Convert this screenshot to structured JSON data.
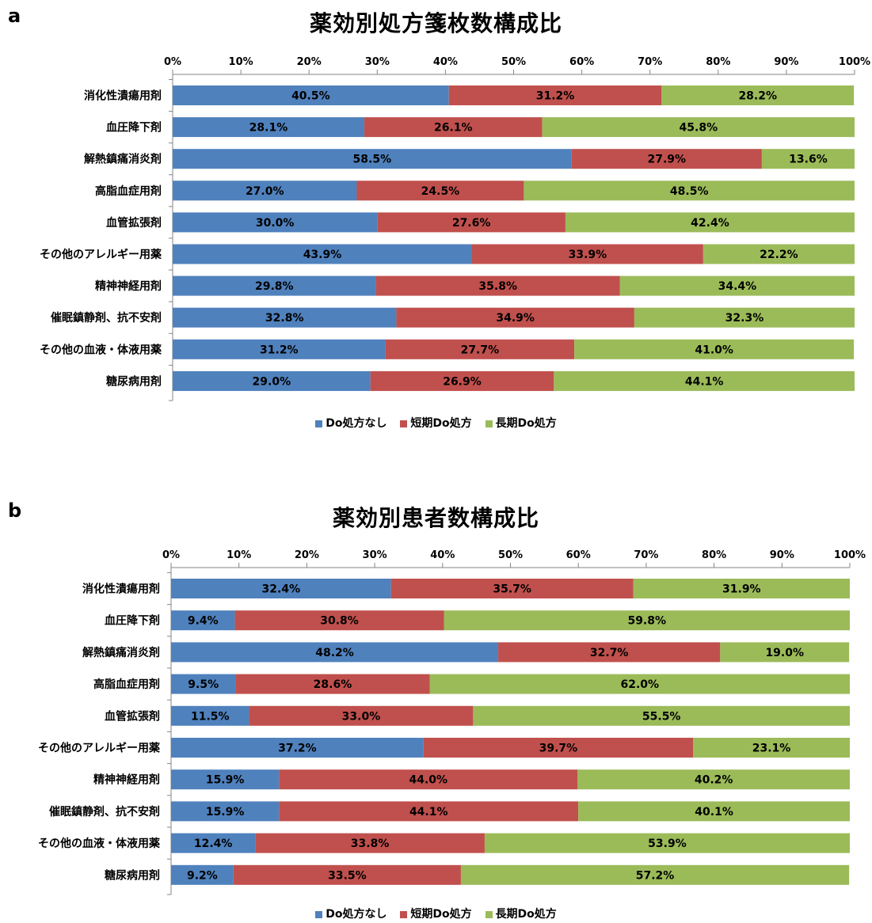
{
  "legend": {
    "series": [
      {
        "label": "Do処方なし",
        "color": "#4f81bd"
      },
      {
        "label": "短期Do処方",
        "color": "#c0504d"
      },
      {
        "label": "長期Do処方",
        "color": "#9bbb59"
      }
    ]
  },
  "chart_data": [
    {
      "panel_label": "a",
      "title": "薬効別処方箋枚数構成比",
      "type": "bar",
      "orientation": "horizontal",
      "stacked": "percent",
      "xlim": [
        0,
        100
      ],
      "x_ticks": [
        "0%",
        "10%",
        "20%",
        "30%",
        "40%",
        "50%",
        "60%",
        "70%",
        "80%",
        "90%",
        "100%"
      ],
      "x_axis_position": "top",
      "categories": [
        "消化性潰瘍用剤",
        "血圧降下剤",
        "解熱鎮痛消炎剤",
        "高脂血症用剤",
        "血管拡張剤",
        "その他のアレルギー用薬",
        "精神神経用剤",
        "催眠鎮静剤、抗不安剤",
        "その他の血液・体液用薬",
        "糖尿病用剤"
      ],
      "series": [
        {
          "name": "Do処方なし",
          "values": [
            40.5,
            28.1,
            58.5,
            27.0,
            30.0,
            43.9,
            29.8,
            32.8,
            31.2,
            29.0
          ],
          "labels": [
            "40.5%",
            "28.1%",
            "58.5%",
            "27.0%",
            "30.0%",
            "43.9%",
            "29.8%",
            "32.8%",
            "31.2%",
            "29.0%"
          ]
        },
        {
          "name": "短期Do処方",
          "values": [
            31.2,
            26.1,
            27.9,
            24.5,
            27.6,
            33.9,
            35.8,
            34.9,
            27.7,
            26.9
          ],
          "labels": [
            "31.2%",
            "26.1%",
            "27.9%",
            "24.5%",
            "27.6%",
            "33.9%",
            "35.8%",
            "34.9%",
            "27.7%",
            "26.9%"
          ]
        },
        {
          "name": "長期Do処方",
          "values": [
            28.2,
            45.8,
            13.6,
            48.5,
            42.4,
            22.2,
            34.4,
            32.3,
            41.0,
            44.1
          ],
          "labels": [
            "28.2%",
            "45.8%",
            "13.6%",
            "48.5%",
            "42.4%",
            "22.2%",
            "34.4%",
            "32.3%",
            "41.0%",
            "44.1%"
          ]
        }
      ],
      "legend_placement": "bottom",
      "grid": false
    },
    {
      "panel_label": "b",
      "title": "薬効別患者数構成比",
      "type": "bar",
      "orientation": "horizontal",
      "stacked": "percent",
      "xlim": [
        0,
        100
      ],
      "x_ticks": [
        "0%",
        "10%",
        "20%",
        "30%",
        "40%",
        "50%",
        "60%",
        "70%",
        "80%",
        "90%",
        "100%"
      ],
      "x_axis_position": "top",
      "categories": [
        "消化性潰瘍用剤",
        "血圧降下剤",
        "解熱鎮痛消炎剤",
        "高脂血症用剤",
        "血管拡張剤",
        "その他のアレルギー用薬",
        "精神神経用剤",
        "催眠鎮静剤、抗不安剤",
        "その他の血液・体液用薬",
        "糖尿病用剤"
      ],
      "series": [
        {
          "name": "Do処方なし",
          "values": [
            32.4,
            9.4,
            48.2,
            9.5,
            11.5,
            37.2,
            15.9,
            15.9,
            12.4,
            9.2
          ],
          "labels": [
            "32.4%",
            "9.4%",
            "48.2%",
            "9.5%",
            "11.5%",
            "37.2%",
            "15.9%",
            "15.9%",
            "12.4%",
            "9.2%"
          ]
        },
        {
          "name": "短期Do処方",
          "values": [
            35.7,
            30.8,
            32.7,
            28.6,
            33.0,
            39.7,
            44.0,
            44.1,
            33.8,
            33.5
          ],
          "labels": [
            "35.7%",
            "30.8%",
            "32.7%",
            "28.6%",
            "33.0%",
            "39.7%",
            "44.0%",
            "44.1%",
            "33.8%",
            "33.5%"
          ]
        },
        {
          "name": "長期Do処方",
          "values": [
            31.9,
            59.8,
            19.0,
            62.0,
            55.5,
            23.1,
            40.2,
            40.1,
            53.9,
            57.2
          ],
          "labels": [
            "31.9%",
            "59.8%",
            "19.0%",
            "62.0%",
            "55.5%",
            "23.1%",
            "40.2%",
            "40.1%",
            "53.9%",
            "57.2%"
          ]
        }
      ],
      "legend_placement": "bottom",
      "grid": false
    }
  ]
}
